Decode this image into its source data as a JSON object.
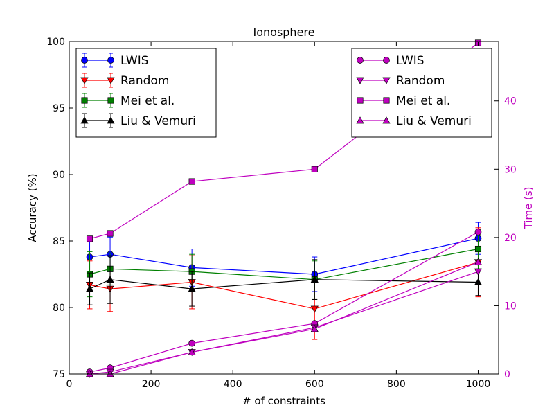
{
  "chart_data": {
    "type": "line",
    "title": "Ionosphere",
    "xlabel": "# of constraints",
    "ylabel": "Accuracy (%)",
    "y2label": "Time (s)",
    "xlim": [
      0,
      1050
    ],
    "ylim": [
      75,
      100
    ],
    "y2lim": [
      0,
      48.7
    ],
    "xticks": [
      0,
      200,
      400,
      600,
      800,
      1000
    ],
    "yticks": [
      75,
      80,
      85,
      90,
      95,
      100
    ],
    "y2ticks": [
      0,
      10,
      20,
      30,
      40
    ],
    "x": [
      50,
      100,
      300,
      600,
      1000
    ],
    "accuracy_series": [
      {
        "name": "LWIS",
        "color": "#0000ff",
        "marker": "circle",
        "values": [
          83.8,
          84.0,
          83.0,
          82.5,
          85.2
        ],
        "errors": [
          1.2,
          1.3,
          1.4,
          1.3,
          1.2
        ]
      },
      {
        "name": "Random",
        "color": "#ff0000",
        "marker": "triangle-down",
        "values": [
          81.7,
          81.4,
          81.9,
          79.9,
          83.4
        ],
        "errors": [
          1.8,
          1.7,
          2.0,
          2.3,
          2.6
        ]
      },
      {
        "name": "Mei et al.",
        "color": "#008000",
        "marker": "square",
        "values": [
          82.5,
          82.9,
          82.7,
          82.1,
          84.4
        ],
        "errors": [
          1.7,
          1.2,
          1.3,
          1.4,
          1.5
        ]
      },
      {
        "name": "Liu & Vemuri",
        "color": "#000000",
        "marker": "triangle-up",
        "values": [
          81.4,
          82.1,
          81.4,
          82.1,
          81.9
        ],
        "errors": [
          1.2,
          1.8,
          1.3,
          1.5,
          1.0
        ]
      }
    ],
    "time_series": [
      {
        "name": "LWIS",
        "color": "#bf00bf",
        "marker": "circle",
        "values": [
          0.3,
          0.9,
          4.5,
          7.4,
          20.8
        ]
      },
      {
        "name": "Random",
        "color": "#bf00bf",
        "marker": "triangle-down",
        "values": [
          0.0,
          0.3,
          3.2,
          6.8,
          15.0
        ]
      },
      {
        "name": "Mei et al.",
        "color": "#bf00bf",
        "marker": "square",
        "values": [
          19.8,
          20.6,
          28.2,
          30.0,
          48.5
        ]
      },
      {
        "name": "Liu & Vemuri",
        "color": "#bf00bf",
        "marker": "triangle-up",
        "values": [
          0.0,
          0.0,
          3.2,
          6.6,
          16.4
        ]
      }
    ],
    "legend_left_position": "top-left",
    "legend_right_position": "top-right"
  }
}
